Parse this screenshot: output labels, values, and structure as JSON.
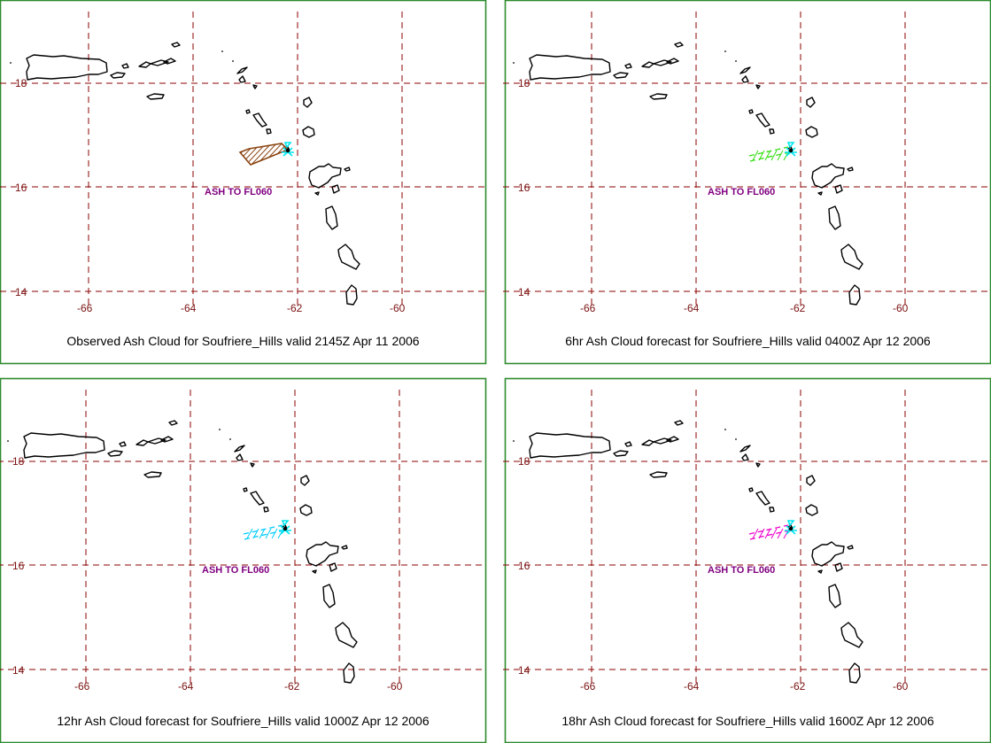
{
  "page": {
    "background": "#ffffff",
    "border_color": "#2e8b2e",
    "grid_color": "#8b0000",
    "coast_color": "#000000"
  },
  "grid": {
    "lon_labels": [
      "-66",
      "-64",
      "-62",
      "-60"
    ],
    "lat_labels": [
      "18",
      "16",
      "14"
    ]
  },
  "volcano": {
    "marker_color": "#00e5ee"
  },
  "panels": [
    {
      "caption": "Observed Ash Cloud for Soufriere_Hills valid 2145Z Apr 11 2006",
      "ash_label": "ASH TO FL060",
      "ash_color": "#8b4513",
      "cloud_style": "hatched-polygon"
    },
    {
      "caption": "6hr Ash Cloud forecast for Soufriere_Hills valid 0400Z Apr 12 2006",
      "ash_label": "ASH TO FL060",
      "ash_color": "#33dd11",
      "cloud_style": "dashed-band"
    },
    {
      "caption": "12hr Ash Cloud forecast for Soufriere_Hills valid 1000Z Apr 12 2006",
      "ash_label": "ASH TO FL060",
      "ash_color": "#00ccff",
      "cloud_style": "dashed-band"
    },
    {
      "caption": "18hr Ash Cloud forecast for Soufriere_Hills valid 1600Z Apr 12 2006",
      "ash_label": "ASH TO FL060",
      "ash_color": "#ee00cc",
      "cloud_style": "dashed-band"
    }
  ]
}
